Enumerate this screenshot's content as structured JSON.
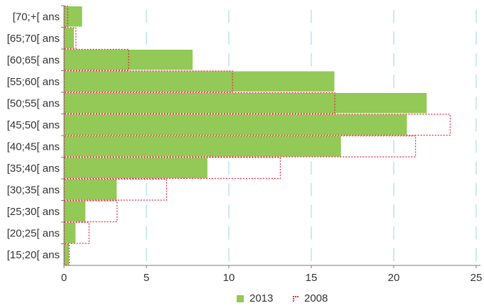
{
  "chart_data": {
    "type": "bar",
    "orientation": "horizontal",
    "categories": [
      "[15;20[ ans",
      "[20;25[ ans",
      "[25;30[ ans",
      "[30;35[ ans",
      "[35;40[ ans",
      "[40;45[ ans",
      "[45;50[ ans",
      "[50;55[ ans",
      "[55;60[ ans",
      "[60;65[ ans",
      "[65;70[ ans",
      "[70;+[ ans"
    ],
    "series": [
      {
        "name": "2013",
        "style": "solid",
        "color": "#92c957",
        "values": [
          0.3,
          0.7,
          1.3,
          3.2,
          8.7,
          16.8,
          20.8,
          22.0,
          16.4,
          7.8,
          0.6,
          1.1
        ]
      },
      {
        "name": "2008",
        "style": "dotted-outline",
        "color": "#e8293b",
        "values": [
          0.3,
          1.5,
          3.2,
          6.2,
          13.1,
          21.3,
          23.4,
          16.4,
          10.2,
          3.9,
          0.7,
          0.2
        ]
      }
    ],
    "xlim": [
      0,
      25
    ],
    "xticks": [
      "0",
      "5",
      "10",
      "15",
      "20",
      "25"
    ],
    "grid": "vertical",
    "legend_position": "bottom",
    "title": "",
    "xlabel": "",
    "ylabel": ""
  }
}
